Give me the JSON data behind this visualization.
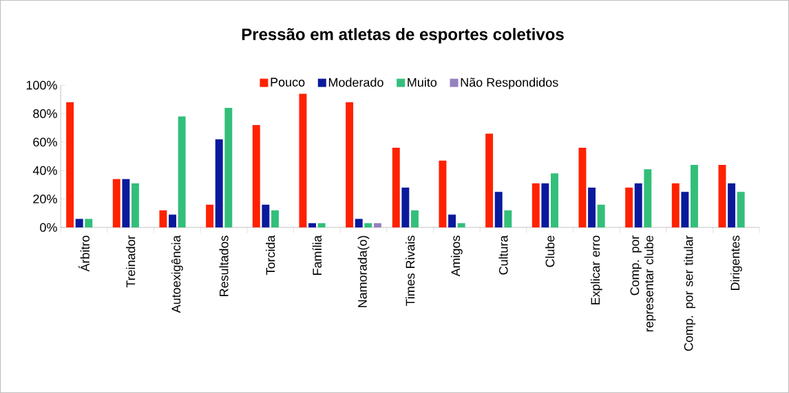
{
  "chart_data": {
    "type": "bar",
    "title": "Pressão em atletas de esportes coletivos",
    "categories": [
      "Árbitro",
      "Treinador",
      "Autoexigência",
      "Resultados",
      "Torcida",
      "Família",
      "Namorada(o)",
      "Times Rivais",
      "Amigos",
      "Cultura",
      "Clube",
      "Explicar erro",
      "Comp. por representar clube",
      "Comp. por ser titular",
      "Dirigentes"
    ],
    "series": [
      {
        "name": "Pouco",
        "color": "#ff2200",
        "values": [
          88,
          34,
          12,
          16,
          72,
          94,
          88,
          56,
          47,
          66,
          31,
          56,
          28,
          31,
          44
        ]
      },
      {
        "name": "Moderado",
        "color": "#0a1a9c",
        "values": [
          6,
          34,
          9,
          62,
          16,
          3,
          6,
          28,
          9,
          25,
          31,
          28,
          31,
          25,
          31
        ]
      },
      {
        "name": "Muito",
        "color": "#33bf7a",
        "values": [
          6,
          31,
          78,
          84,
          12,
          3,
          3,
          12,
          3,
          12,
          38,
          16,
          41,
          44,
          25
        ]
      },
      {
        "name": "Não Respondidos",
        "color": "#9580c0",
        "values": [
          null,
          null,
          null,
          null,
          null,
          null,
          3,
          null,
          null,
          null,
          null,
          null,
          null,
          null,
          null
        ]
      }
    ],
    "ylim": [
      0,
      100
    ],
    "yticks": [
      {
        "value": 0,
        "label": "0%"
      },
      {
        "value": 20,
        "label": "20%"
      },
      {
        "value": 40,
        "label": "40%"
      },
      {
        "value": 60,
        "label": "60%"
      },
      {
        "value": 80,
        "label": "80%"
      },
      {
        "value": 100,
        "label": "100%"
      }
    ],
    "legend": "top"
  }
}
